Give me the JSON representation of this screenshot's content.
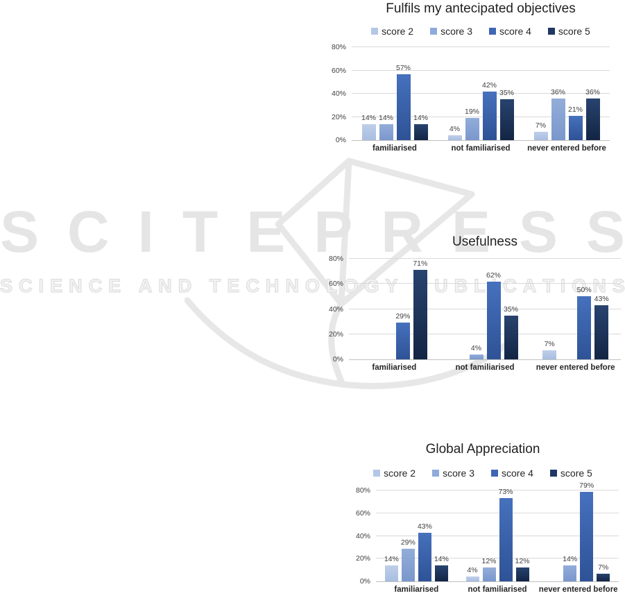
{
  "watermark": {
    "brand": "SCITEPRESS",
    "subtitle": "SCIENCE AND TECHNOLOGY PUBLICATIONS",
    "color": "#e5e5e5"
  },
  "palette": {
    "score 2": "#b4c7e7",
    "score 3": "#8faadc",
    "score 4": "#3e66b4",
    "score 5": "#1f3864"
  },
  "chart_data": [
    {
      "type": "bar",
      "title": "Fulfils my antecipated objectives",
      "show_legend": true,
      "legend_position": "top",
      "legend": [
        "score 2",
        "score 3",
        "score 4",
        "score 5"
      ],
      "categories": [
        "familiarised",
        "not familiarised",
        "never entered before"
      ],
      "series": [
        {
          "name": "score 2",
          "values": [
            14,
            4,
            7
          ]
        },
        {
          "name": "score 3",
          "values": [
            14,
            19,
            36
          ]
        },
        {
          "name": "score 4",
          "values": [
            57,
            42,
            21
          ]
        },
        {
          "name": "score 5",
          "values": [
            14,
            35,
            36
          ]
        }
      ],
      "xlabel": "",
      "ylabel": "",
      "ylim": [
        0,
        80
      ],
      "y_ticks": [
        "0%",
        "20%",
        "40%",
        "60%",
        "80%"
      ],
      "grid": true,
      "value_labels": true,
      "value_label_suffix": "%"
    },
    {
      "type": "bar",
      "title": "Usefulness",
      "show_legend": false,
      "legend": [
        "score 2",
        "score 3",
        "score 4",
        "score 5"
      ],
      "categories": [
        "familiarised",
        "not familiarised",
        "never entered before"
      ],
      "series": [
        {
          "name": "score 2",
          "values": [
            null,
            null,
            7
          ]
        },
        {
          "name": "score 3",
          "values": [
            null,
            4,
            null
          ]
        },
        {
          "name": "score 4",
          "values": [
            29,
            62,
            50
          ]
        },
        {
          "name": "score 5",
          "values": [
            71,
            35,
            43
          ]
        }
      ],
      "xlabel": "",
      "ylabel": "",
      "ylim": [
        0,
        80
      ],
      "y_ticks": [
        "0%",
        "20%",
        "40%",
        "60%",
        "80%"
      ],
      "grid": true,
      "value_labels": true,
      "value_label_suffix": "%"
    },
    {
      "type": "bar",
      "title": "Global Appreciation",
      "show_legend": true,
      "legend_position": "top",
      "legend": [
        "score 2",
        "score 3",
        "score 4",
        "score 5"
      ],
      "categories": [
        "familiarised",
        "not familiarised",
        "never entered before"
      ],
      "series": [
        {
          "name": "score 2",
          "values": [
            14,
            4,
            null
          ]
        },
        {
          "name": "score 3",
          "values": [
            29,
            12,
            14
          ]
        },
        {
          "name": "score 4",
          "values": [
            43,
            73,
            79
          ]
        },
        {
          "name": "score 5",
          "values": [
            14,
            12,
            7
          ]
        }
      ],
      "xlabel": "",
      "ylabel": "",
      "ylim": [
        0,
        80
      ],
      "y_ticks": [
        "0%",
        "20%",
        "40%",
        "60%",
        "80%"
      ],
      "grid": true,
      "value_labels": true,
      "value_label_suffix": "%"
    }
  ]
}
